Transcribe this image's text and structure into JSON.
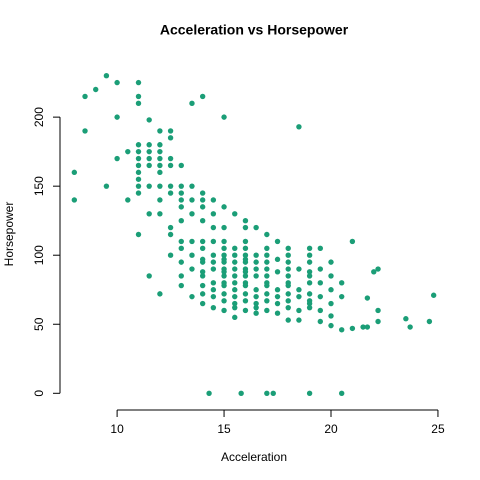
{
  "chart_data": {
    "type": "scatter",
    "title": "Acceleration vs Horsepower",
    "xlabel": "Acceleration",
    "ylabel": "Horsepower",
    "color": "#1b9e77",
    "x": [
      9.5,
      10,
      11,
      9,
      8.5,
      11,
      11,
      14,
      13.5,
      10,
      15,
      18.5,
      8,
      8,
      8.5,
      9.5,
      10,
      10.5,
      11.5,
      12,
      12.5,
      12.5,
      10.5,
      11,
      11.5,
      12,
      11,
      11.5,
      12,
      14.3,
      15.8,
      17,
      17.3,
      19,
      20.5,
      21,
      22.2,
      22,
      21.7,
      21,
      20.5,
      20,
      19.5,
      21.7,
      21.5,
      22.2,
      22.2,
      23.5,
      23.7,
      24.6,
      24.8,
      11,
      11.5,
      12,
      11,
      11.5,
      12,
      11,
      11.5,
      12,
      12.5,
      11,
      11.5,
      12,
      12.5,
      13,
      11,
      12,
      11,
      11,
      11.5,
      12,
      12.5,
      13,
      13.5,
      12.5,
      13,
      14,
      12,
      13,
      13.5,
      14,
      14.5,
      13,
      14,
      15,
      13.5,
      14.5,
      15.5,
      13,
      14,
      16,
      12.5,
      14.5,
      15,
      16,
      16.5,
      17,
      12.5,
      13,
      13.5,
      14,
      14.5,
      15,
      16,
      17.5,
      18,
      19,
      19.5,
      13,
      14,
      15,
      15.5,
      16,
      17,
      12.5,
      13.5,
      14.5,
      15,
      15.5,
      16,
      16.5,
      17,
      18,
      19,
      14,
      15,
      16,
      17.5,
      13,
      14,
      14.5,
      15,
      15.5,
      16,
      16.5,
      17,
      18,
      19,
      20,
      13.5,
      14.5,
      15,
      15.5,
      16,
      16.5,
      17,
      18,
      18.5,
      19.5,
      14,
      15,
      16,
      17.5,
      19,
      13,
      14,
      15,
      15.5,
      16,
      16.5,
      17,
      18,
      19,
      20,
      14.5,
      15,
      15.5,
      16,
      17,
      18,
      19,
      19.5,
      20.5,
      13,
      14,
      15,
      16,
      17,
      18,
      14.5,
      15.5,
      16.5,
      17.5,
      18.5,
      20,
      14,
      15,
      16,
      17,
      18,
      19,
      13.5,
      14.5,
      15.5,
      16.5,
      17.5,
      18.5,
      19.5,
      20.5,
      15,
      16,
      17,
      18,
      19,
      14,
      15.5,
      16.5,
      17.5,
      19,
      20,
      14.5,
      15.5,
      16.5,
      18,
      19,
      15,
      16,
      17,
      18.5,
      19.5,
      16.5,
      17.5,
      15.5,
      18,
      18.5,
      20
    ],
    "values": [
      230,
      225,
      225,
      220,
      215,
      215,
      210,
      215,
      210,
      200,
      200,
      193,
      160,
      140,
      190,
      150,
      170,
      175,
      198,
      190,
      190,
      185,
      140,
      145,
      130,
      130,
      115,
      85,
      72,
      0,
      0,
      0,
      0,
      0,
      0,
      110,
      90,
      88,
      69,
      47,
      46,
      49,
      52,
      48,
      48,
      60,
      52,
      54,
      48,
      52,
      71,
      180,
      180,
      180,
      175,
      175,
      175,
      170,
      170,
      170,
      170,
      165,
      165,
      165,
      165,
      165,
      160,
      160,
      155,
      150,
      150,
      150,
      150,
      150,
      150,
      145,
      145,
      145,
      140,
      140,
      140,
      140,
      140,
      135,
      135,
      135,
      130,
      130,
      130,
      125,
      125,
      125,
      120,
      120,
      120,
      120,
      120,
      115,
      115,
      110,
      110,
      110,
      110,
      110,
      110,
      110,
      105,
      105,
      105,
      105,
      105,
      105,
      105,
      105,
      105,
      100,
      100,
      100,
      100,
      100,
      100,
      100,
      100,
      100,
      100,
      97,
      97,
      97,
      97,
      95,
      95,
      95,
      95,
      95,
      95,
      95,
      95,
      95,
      95,
      95,
      90,
      90,
      90,
      90,
      90,
      90,
      90,
      90,
      90,
      90,
      88,
      88,
      88,
      88,
      88,
      85,
      85,
      85,
      85,
      85,
      85,
      85,
      85,
      85,
      85,
      80,
      80,
      80,
      80,
      80,
      80,
      80,
      80,
      80,
      78,
      78,
      78,
      78,
      78,
      78,
      75,
      75,
      75,
      75,
      75,
      75,
      72,
      72,
      72,
      72,
      72,
      72,
      70,
      70,
      70,
      70,
      70,
      70,
      70,
      70,
      67,
      67,
      67,
      67,
      67,
      65,
      65,
      65,
      65,
      65,
      65,
      62,
      62,
      62,
      62,
      62,
      60,
      60,
      60,
      60,
      60,
      58,
      58,
      55,
      53,
      53,
      56
    ],
    "xlim": [
      7.33,
      25.47
    ],
    "ylim": [
      -9.2,
      239.2
    ],
    "xticks": [
      10,
      15,
      20,
      25
    ],
    "yticks": [
      0,
      50,
      100,
      150,
      200
    ]
  }
}
